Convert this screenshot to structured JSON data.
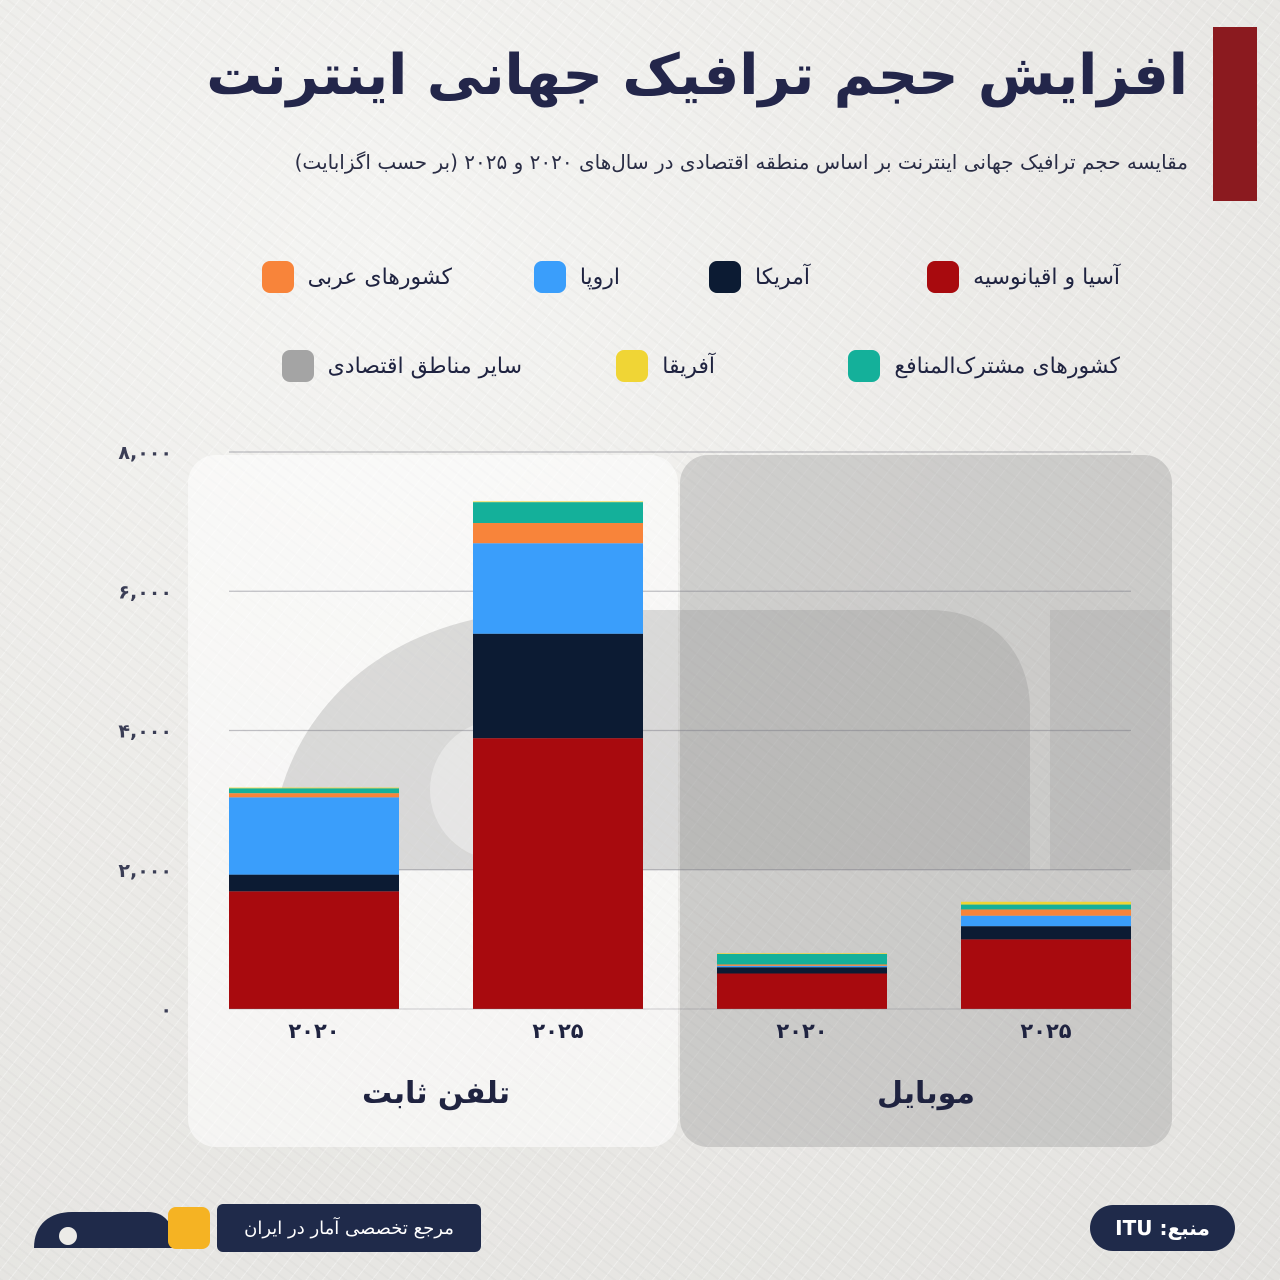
{
  "header": {
    "title": "افزایش حجم ترافیک جهانی اینترنت",
    "subtitle": "مقایسه حجم ترافیک جهانی اینترنت بر اساس منطقه اقتصادی در سال‌های ۲۰۲۰ و ۲۰۲۵ (بر حسب اگزابایت)"
  },
  "legend": [
    {
      "label": "آسیا و اقیانوسیه",
      "color": "#a80a0e"
    },
    {
      "label": "آمریکا",
      "color": "#0c1b33"
    },
    {
      "label": "اروپا",
      "color": "#3a9efb"
    },
    {
      "label": "کشورهای عربی",
      "color": "#f8843a"
    },
    {
      "label": "کشورهای مشترک‌المنافع",
      "color": "#14b09a"
    },
    {
      "label": "آفریقا",
      "color": "#f0d535"
    },
    {
      "label": "سایر مناطق اقتصادی",
      "color": "#a4a4a4"
    }
  ],
  "chart_data": {
    "type": "bar",
    "stacked": true,
    "ylim": [
      0,
      8000
    ],
    "yticks": [
      {
        "value": 0,
        "label": "۰"
      },
      {
        "value": 2000,
        "label": "۲,۰۰۰"
      },
      {
        "value": 4000,
        "label": "۴,۰۰۰"
      },
      {
        "value": 6000,
        "label": "۶,۰۰۰"
      },
      {
        "value": 8000,
        "label": "۸,۰۰۰"
      }
    ],
    "groups": [
      {
        "label": "تلفن ثابت",
        "categories": [
          "۲۰۲۰",
          "۲۰۲۵"
        ]
      },
      {
        "label": "موبایل",
        "categories": [
          "۲۰۲۰",
          "۲۰۲۵"
        ]
      }
    ],
    "categories": [
      "۲۰۲۰",
      "۲۰۲۵",
      "۲۰۲۰",
      "۲۰۲۵"
    ],
    "series": [
      {
        "name": "آسیا و اقیانوسیه",
        "values": [
          1690,
          3890,
          510,
          1000
        ]
      },
      {
        "name": "آمریکا",
        "values": [
          240,
          1500,
          90,
          190
        ]
      },
      {
        "name": "اروپا",
        "values": [
          1110,
          1300,
          20,
          150
        ]
      },
      {
        "name": "کشورهای عربی",
        "values": [
          60,
          290,
          20,
          90
        ]
      },
      {
        "name": "کشورهای مشترک‌المنافع",
        "values": [
          70,
          300,
          150,
          70
        ]
      },
      {
        "name": "آفریقا",
        "values": [
          10,
          10,
          10,
          40
        ]
      },
      {
        "name": "سایر مناطق اقتصادی",
        "values": [
          0,
          0,
          0,
          0
        ]
      }
    ]
  },
  "footer": {
    "tagline": "مرجع تخصصی آمار در ایران",
    "source": "منبع: ITU"
  }
}
